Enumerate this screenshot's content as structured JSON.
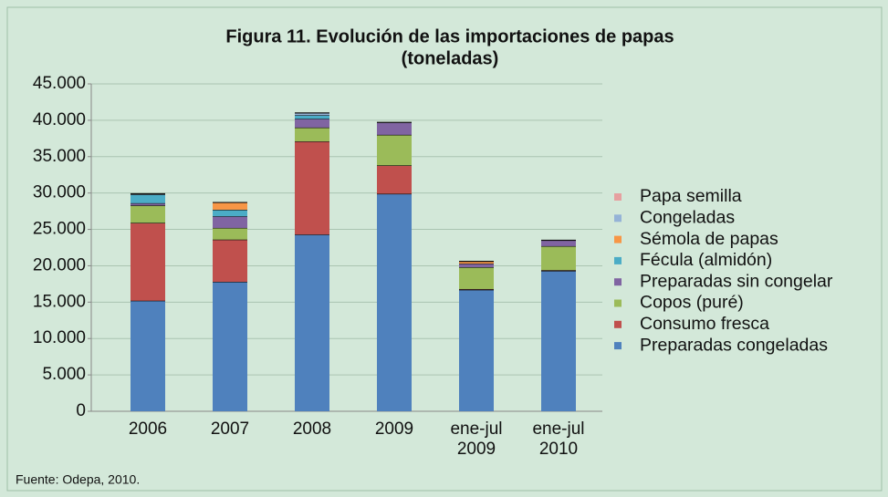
{
  "chart_data": {
    "type": "stacked-bar",
    "title": "Figura 11. Evolución de las importaciones de papas",
    "subtitle": "(toneladas)",
    "source": "Fuente: Odepa, 2010.",
    "categories": [
      "2006",
      "2007",
      "2008",
      "2009",
      "ene-jul 2009",
      "ene-jul 2010"
    ],
    "series": [
      {
        "name": "Preparadas congeladas",
        "color": "#4f81bd",
        "values": [
          15200,
          17800,
          24300,
          29900,
          16700,
          19300
        ]
      },
      {
        "name": "Consumo fresca",
        "color": "#c0504d",
        "values": [
          10700,
          5800,
          12800,
          3900,
          100,
          100
        ]
      },
      {
        "name": "Copos (puré)",
        "color": "#9bbb59",
        "values": [
          2400,
          1600,
          1900,
          4200,
          3000,
          3300
        ]
      },
      {
        "name": "Preparadas sin congelar",
        "color": "#8064a2",
        "values": [
          300,
          1600,
          1200,
          1700,
          500,
          800
        ]
      },
      {
        "name": "Fécula (almidón)",
        "color": "#4bacc6",
        "values": [
          1200,
          900,
          500,
          0,
          0,
          0
        ]
      },
      {
        "name": "Sémola de papas",
        "color": "#f79646",
        "values": [
          0,
          1000,
          0,
          0,
          300,
          0
        ]
      },
      {
        "name": "Congeladas",
        "color": "#95b3d7",
        "values": [
          100,
          0,
          300,
          0,
          0,
          0
        ]
      },
      {
        "name": "Papa semilla",
        "color": "#e6a0a0",
        "values": [
          0,
          0,
          0,
          0,
          0,
          0
        ]
      }
    ],
    "ylim": [
      0,
      45000
    ],
    "yticks": [
      0,
      {
        "value": 5000,
        "label": "5.000"
      },
      {
        "value": 10000,
        "label": "10.000"
      },
      {
        "value": 15000,
        "label": "15.000"
      },
      {
        "value": 20000,
        "label": "20.000"
      },
      {
        "value": 25000,
        "label": "25.000"
      },
      {
        "value": 30000,
        "label": "30.000"
      },
      {
        "value": 35000,
        "label": "35.000"
      },
      {
        "value": 40000,
        "label": "40.000"
      },
      {
        "value": 45000,
        "label": "45.000"
      }
    ],
    "grid": true,
    "legend": "right"
  }
}
